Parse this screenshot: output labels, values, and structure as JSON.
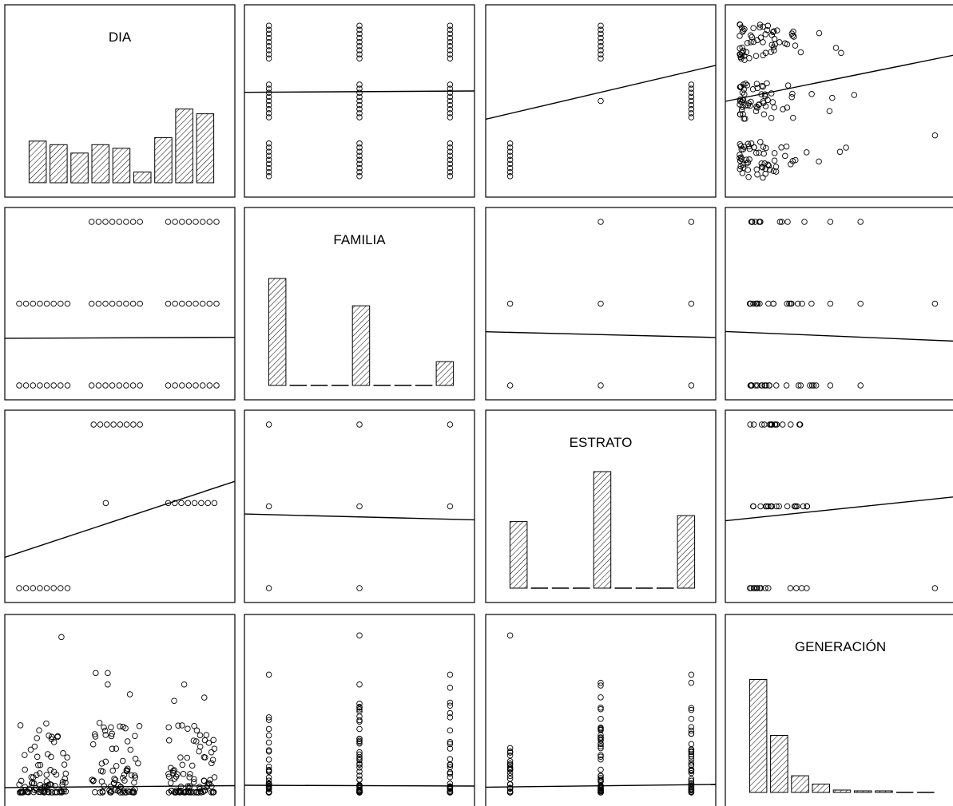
{
  "chart_data": {
    "type": "scatter",
    "variables": [
      "DIA",
      "FAMILIA",
      "ESTRATO",
      "GENERACIÓN"
    ],
    "grid": false,
    "legend": "none",
    "diagonal_histograms": {
      "DIA": [
        0.35,
        0.32,
        0.25,
        0.32,
        0.29,
        0.09,
        0.38,
        0.62,
        0.58
      ],
      "FAMILIA": [
        0.9,
        0.0,
        0.0,
        0.0,
        0.67,
        0.0,
        0.0,
        0.0,
        0.2
      ],
      "ESTRATO": [
        0.56,
        0.0,
        0.0,
        0.0,
        0.98,
        0.0,
        0.0,
        0.0,
        0.61
      ],
      "GENERACIÓN": [
        0.95,
        0.48,
        0.14,
        0.07,
        0.02,
        0.01,
        0.01,
        0.0,
        0.0
      ]
    },
    "trend_lines": {
      "DIA|FAMILIA": [
        0.545,
        0.552
      ],
      "DIA|ESTRATO": [
        0.405,
        0.685
      ],
      "DIA|GENERACIÓN": [
        0.498,
        0.74
      ],
      "FAMILIA|DIA": [
        0.32,
        0.325
      ],
      "FAMILIA|ESTRATO": [
        0.354,
        0.324
      ],
      "FAMILIA|GENERACIÓN": [
        0.355,
        0.305
      ],
      "ESTRATO|DIA": [
        0.235,
        0.63
      ],
      "ESTRATO|FAMILIA": [
        0.46,
        0.43
      ],
      "ESTRATO|GENERACIÓN": [
        0.425,
        0.55
      ],
      "GENERACIÓN|DIA": [
        0.1,
        0.11
      ],
      "GENERACIÓN|FAMILIA": [
        0.112,
        0.108
      ],
      "GENERACIÓN|ESTRATO": [
        0.102,
        0.116
      ]
    }
  }
}
